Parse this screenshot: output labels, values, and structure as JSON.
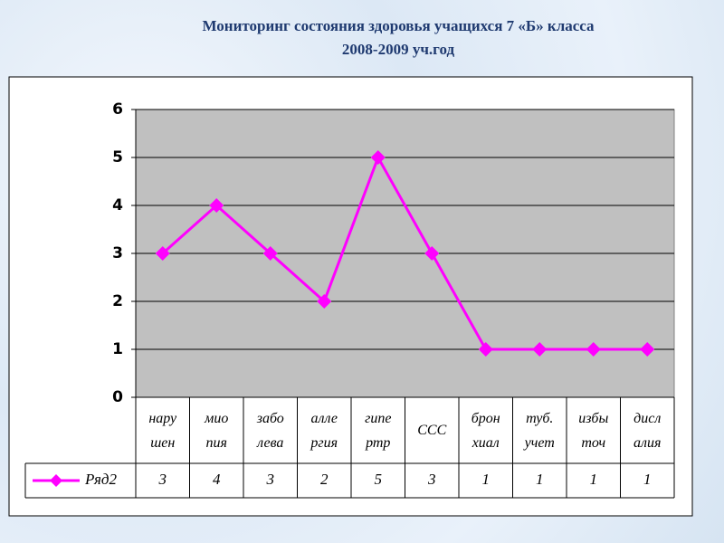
{
  "chart_data": {
    "type": "line",
    "title": "Мониторинг состояния здоровья учащихся 7 «Б» класса",
    "subtitle": "2008-2009 уч.год",
    "categories": [
      "нару\nшен",
      "мио\nпия",
      "забо\nлева",
      "алле\nргия",
      "гипе\nртр",
      "ССС",
      "брон\nхиал",
      "туб.\nучет",
      "избы\nточ",
      "дисл\nалия"
    ],
    "series": [
      {
        "name": "Ряд2",
        "color": "#ff00ff",
        "values": [
          3,
          4,
          3,
          2,
          5,
          3,
          1,
          1,
          1,
          1
        ]
      }
    ],
    "ylim": [
      0,
      6
    ],
    "yticks": [
      0,
      1,
      2,
      3,
      4,
      5,
      6
    ],
    "grid": true
  }
}
